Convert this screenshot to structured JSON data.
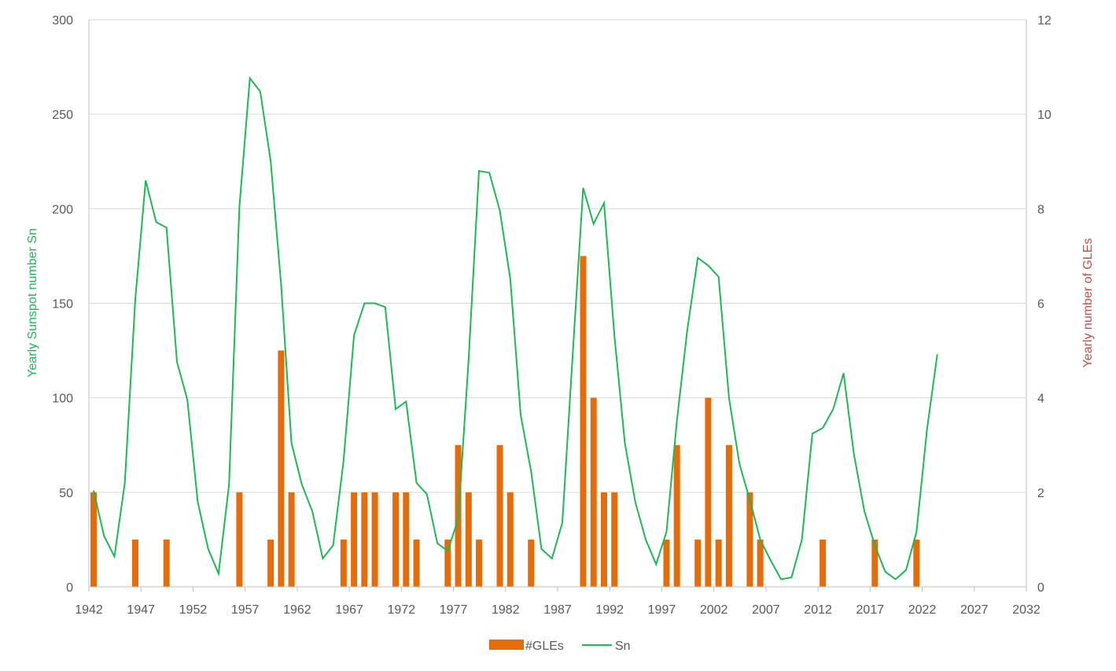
{
  "chart_data": {
    "type": "bar+line",
    "title": "",
    "xlabel": "",
    "ylabel": "Yearly Sunspot number Sn",
    "y2label": "Yearly number of GLEs",
    "xlim": [
      1942,
      2032
    ],
    "x_ticks": [
      1942,
      1947,
      1952,
      1957,
      1962,
      1967,
      1972,
      1977,
      1982,
      1987,
      1992,
      1997,
      2002,
      2007,
      2012,
      2017,
      2022,
      2027,
      2032
    ],
    "ylim": [
      0,
      300
    ],
    "y_ticks": [
      0,
      50,
      100,
      150,
      200,
      250,
      300
    ],
    "y2lim": [
      0,
      12
    ],
    "y2_ticks": [
      0,
      2,
      4,
      6,
      8,
      10,
      12
    ],
    "grid": true,
    "legend_position": "bottom",
    "colors": {
      "gles": "#E46C0A",
      "sn": "#1DB954",
      "ylabel": "#1DB954",
      "y2label": "#C0504D",
      "grid": "#D9D9D9",
      "axis": "#BFBFBF"
    },
    "series": [
      {
        "name": "#GLEs",
        "type": "bar",
        "axis": "right",
        "x": [
          1942,
          1946,
          1949,
          1956,
          1959,
          1960,
          1961,
          1966,
          1967,
          1968,
          1969,
          1971,
          1972,
          1973,
          1976,
          1977,
          1978,
          1979,
          1981,
          1982,
          1984,
          1989,
          1990,
          1991,
          1992,
          1997,
          1998,
          2000,
          2001,
          2002,
          2003,
          2005,
          2006,
          2012,
          2017,
          2021
        ],
        "values": [
          2,
          1,
          1,
          2,
          1,
          5,
          2,
          1,
          2,
          2,
          2,
          2,
          2,
          1,
          1,
          3,
          2,
          1,
          3,
          2,
          1,
          7,
          4,
          2,
          2,
          1,
          3,
          1,
          4,
          1,
          3,
          2,
          1,
          1,
          1,
          1
        ]
      },
      {
        "name": "Sn",
        "type": "line",
        "axis": "left",
        "x": [
          1942,
          1943,
          1944,
          1945,
          1946,
          1947,
          1948,
          1949,
          1950,
          1951,
          1952,
          1953,
          1954,
          1955,
          1956,
          1957,
          1958,
          1959,
          1960,
          1961,
          1962,
          1963,
          1964,
          1965,
          1966,
          1967,
          1968,
          1969,
          1970,
          1971,
          1972,
          1973,
          1974,
          1975,
          1976,
          1977,
          1978,
          1979,
          1980,
          1981,
          1982,
          1983,
          1984,
          1985,
          1986,
          1987,
          1988,
          1989,
          1990,
          1991,
          1992,
          1993,
          1994,
          1995,
          1996,
          1997,
          1998,
          1999,
          2000,
          2001,
          2002,
          2003,
          2004,
          2005,
          2006,
          2007,
          2008,
          2009,
          2010,
          2011,
          2012,
          2013,
          2014,
          2015,
          2016,
          2017,
          2018,
          2019,
          2020,
          2021,
          2022,
          2023
        ],
        "values": [
          51,
          27,
          16,
          55,
          152,
          215,
          193,
          190,
          119,
          99,
          45,
          20,
          7,
          54,
          201,
          269,
          262,
          225,
          160,
          76,
          54,
          40,
          15,
          22,
          67,
          133,
          150,
          150,
          148,
          94,
          98,
          55,
          49,
          23,
          19,
          36,
          120,
          220,
          219,
          199,
          163,
          91,
          61,
          20,
          15,
          34,
          123,
          211,
          192,
          203,
          133,
          76,
          45,
          25,
          12,
          29,
          88,
          136,
          174,
          170,
          164,
          100,
          65,
          46,
          25,
          14,
          4,
          5,
          25,
          81,
          84,
          94,
          113,
          70,
          40,
          22,
          8,
          4,
          9,
          29,
          83,
          123
        ]
      }
    ]
  }
}
